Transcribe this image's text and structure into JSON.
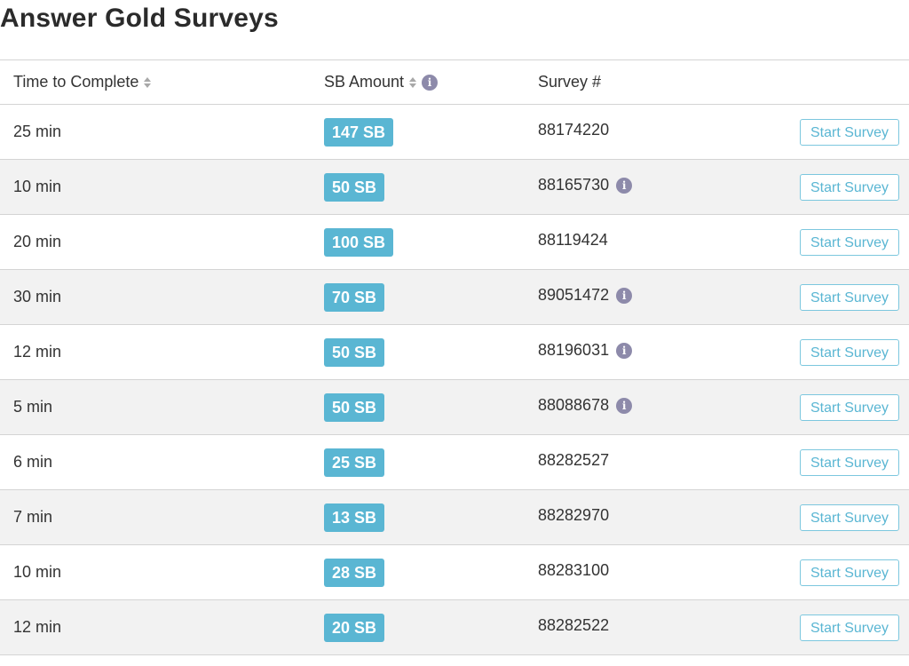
{
  "page": {
    "title": "Answer Gold Surveys"
  },
  "table": {
    "headers": {
      "time": "Time to Complete",
      "sb": "SB Amount",
      "survey": "Survey #"
    },
    "rows": [
      {
        "time": "25 min",
        "sb": "147 SB",
        "survey": "88174220",
        "info": false,
        "action": "Start Survey"
      },
      {
        "time": "10 min",
        "sb": "50 SB",
        "survey": "88165730",
        "info": true,
        "action": "Start Survey"
      },
      {
        "time": "20 min",
        "sb": "100 SB",
        "survey": "88119424",
        "info": false,
        "action": "Start Survey"
      },
      {
        "time": "30 min",
        "sb": "70 SB",
        "survey": "89051472",
        "info": true,
        "action": "Start Survey"
      },
      {
        "time": "12 min",
        "sb": "50 SB",
        "survey": "88196031",
        "info": true,
        "action": "Start Survey"
      },
      {
        "time": "5 min",
        "sb": "50 SB",
        "survey": "88088678",
        "info": true,
        "action": "Start Survey"
      },
      {
        "time": "6 min",
        "sb": "25 SB",
        "survey": "88282527",
        "info": false,
        "action": "Start Survey"
      },
      {
        "time": "7 min",
        "sb": "13 SB",
        "survey": "88282970",
        "info": false,
        "action": "Start Survey"
      },
      {
        "time": "10 min",
        "sb": "28 SB",
        "survey": "88283100",
        "info": false,
        "action": "Start Survey"
      },
      {
        "time": "12 min",
        "sb": "20 SB",
        "survey": "88282522",
        "info": false,
        "action": "Start Survey"
      }
    ]
  },
  "icons": {
    "info": "info-icon",
    "sort": "sort-icon"
  },
  "colors": {
    "badge": "#5ab6d3",
    "button_border": "#7cc7de",
    "info_icon": "#8d8aaa",
    "row_alt": "#f2f2f2"
  }
}
